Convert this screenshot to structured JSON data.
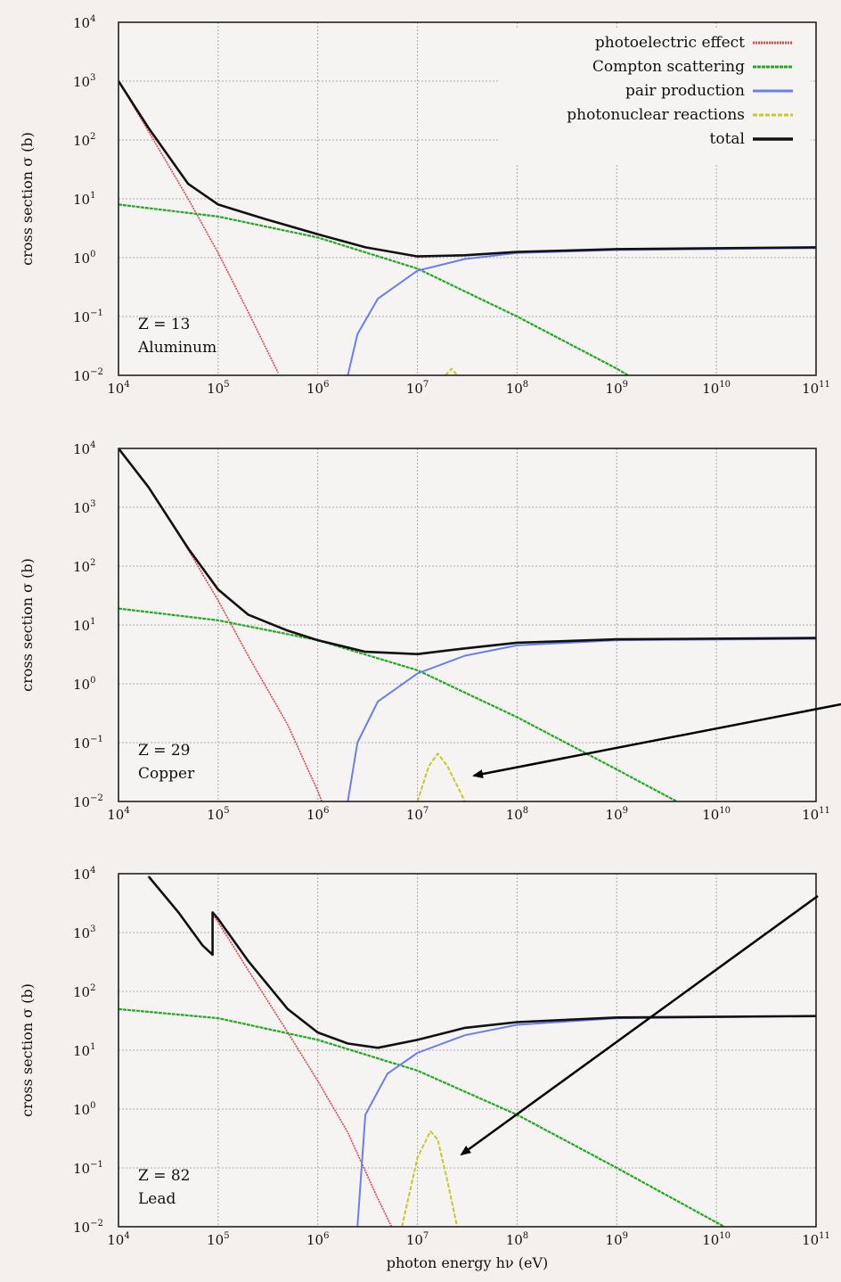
{
  "chart_data": [
    {
      "type": "line",
      "panel": "aluminum",
      "annotation_z": "Z = 13",
      "annotation_element": "Aluminum",
      "xlabel": "",
      "ylabel": "cross section σ (b)",
      "xscale": "log",
      "yscale": "log",
      "xlim": [
        10000,
        100000000000
      ],
      "ylim": [
        0.01,
        10000
      ],
      "x_ticks": [
        {
          "base": "10",
          "exp": "4"
        },
        {
          "base": "10",
          "exp": "5"
        },
        {
          "base": "10",
          "exp": "6"
        },
        {
          "base": "10",
          "exp": "7"
        },
        {
          "base": "10",
          "exp": "8"
        },
        {
          "base": "10",
          "exp": "9"
        },
        {
          "base": "10",
          "exp": "10"
        },
        {
          "base": "10",
          "exp": "11"
        }
      ],
      "y_ticks": [
        {
          "base": "10",
          "exp": "4"
        },
        {
          "base": "10",
          "exp": "3"
        },
        {
          "base": "10",
          "exp": "2"
        },
        {
          "base": "10",
          "exp": "1"
        },
        {
          "base": "10",
          "exp": "0"
        },
        {
          "base": "10",
          "exp": "−1"
        },
        {
          "base": "10",
          "exp": "−2"
        }
      ],
      "grid": true,
      "legend": "top-right",
      "series": [
        {
          "name": "photoelectric effect",
          "color": "#e04848",
          "points": [
            [
              10000,
              1000
            ],
            [
              20000,
              140
            ],
            [
              50000,
              10
            ],
            [
              100000,
              1.2
            ],
            [
              200000,
              0.12
            ],
            [
              400000,
              0.011
            ]
          ]
        },
        {
          "name": "Compton scattering",
          "color": "#22aa22",
          "points": [
            [
              10000,
              8
            ],
            [
              100000,
              5
            ],
            [
              1000000,
              2.2
            ],
            [
              10000000,
              0.65
            ],
            [
              100000000,
              0.1
            ],
            [
              1000000000,
              0.013
            ],
            [
              1300000000,
              0.01
            ]
          ]
        },
        {
          "name": "pair production",
          "color": "#6a7ef0",
          "points": [
            [
              2000000,
              0.01
            ],
            [
              2500000,
              0.05
            ],
            [
              4000000,
              0.2
            ],
            [
              10000000,
              0.6
            ],
            [
              30000000,
              0.95
            ],
            [
              100000000,
              1.2
            ],
            [
              1000000000,
              1.35
            ],
            [
              100000000000,
              1.45
            ]
          ]
        },
        {
          "name": "photonuclear reactions",
          "color": "#c8c828",
          "points": [
            [
              19000000,
              0.01
            ],
            [
              22000000,
              0.013
            ],
            [
              25000000,
              0.01
            ]
          ]
        },
        {
          "name": "total",
          "color": "#111111",
          "points": [
            [
              10000,
              1000
            ],
            [
              20000,
              160
            ],
            [
              50000,
              18
            ],
            [
              100000,
              8
            ],
            [
              300000,
              4.5
            ],
            [
              1000000,
              2.5
            ],
            [
              3000000,
              1.5
            ],
            [
              10000000,
              1.05
            ],
            [
              30000000,
              1.1
            ],
            [
              100000000,
              1.25
            ],
            [
              1000000000,
              1.4
            ],
            [
              100000000000,
              1.5
            ]
          ]
        }
      ]
    },
    {
      "type": "line",
      "panel": "copper",
      "annotation_z": "Z = 29",
      "annotation_element": "Copper",
      "xlabel": "",
      "ylabel": "cross section σ (b)",
      "xscale": "log",
      "yscale": "log",
      "xlim": [
        10000,
        100000000000
      ],
      "ylim": [
        0.01,
        10000
      ],
      "x_ticks": [
        {
          "base": "10",
          "exp": "4"
        },
        {
          "base": "10",
          "exp": "5"
        },
        {
          "base": "10",
          "exp": "6"
        },
        {
          "base": "10",
          "exp": "7"
        },
        {
          "base": "10",
          "exp": "8"
        },
        {
          "base": "10",
          "exp": "9"
        },
        {
          "base": "10",
          "exp": "10"
        },
        {
          "base": "10",
          "exp": "11"
        }
      ],
      "y_ticks": [
        {
          "base": "10",
          "exp": "4"
        },
        {
          "base": "10",
          "exp": "3"
        },
        {
          "base": "10",
          "exp": "2"
        },
        {
          "base": "10",
          "exp": "1"
        },
        {
          "base": "10",
          "exp": "0"
        },
        {
          "base": "10",
          "exp": "−1"
        },
        {
          "base": "10",
          "exp": "−2"
        }
      ],
      "grid": true,
      "series": [
        {
          "name": "photoelectric effect",
          "color": "#e04848",
          "points": [
            [
              10000,
              10000
            ],
            [
              20000,
              2200
            ],
            [
              50000,
              190
            ],
            [
              100000,
              26
            ],
            [
              200000,
              3
            ],
            [
              500000,
              0.2
            ],
            [
              1000000,
              0.015
            ],
            [
              1100000,
              0.01
            ]
          ]
        },
        {
          "name": "Compton scattering",
          "color": "#22aa22",
          "points": [
            [
              10000,
              19
            ],
            [
              100000,
              12
            ],
            [
              1000000,
              5.5
            ],
            [
              10000000,
              1.7
            ],
            [
              100000000,
              0.27
            ],
            [
              1000000000,
              0.035
            ],
            [
              4000000000,
              0.01
            ]
          ]
        },
        {
          "name": "pair production",
          "color": "#6a7ef0",
          "points": [
            [
              2000000,
              0.01
            ],
            [
              2500000,
              0.1
            ],
            [
              4000000,
              0.5
            ],
            [
              10000000,
              1.5
            ],
            [
              30000000,
              3
            ],
            [
              100000000,
              4.5
            ],
            [
              1000000000,
              5.5
            ],
            [
              100000000000,
              5.8
            ]
          ]
        },
        {
          "name": "photonuclear reactions",
          "color": "#c8c828",
          "points": [
            [
              10000000,
              0.01
            ],
            [
              13000000,
              0.04
            ],
            [
              16000000,
              0.065
            ],
            [
              20000000,
              0.04
            ],
            [
              30000000,
              0.01
            ]
          ]
        },
        {
          "name": "total",
          "color": "#111111",
          "points": [
            [
              10000,
              10000
            ],
            [
              20000,
              2200
            ],
            [
              50000,
              200
            ],
            [
              100000,
              40
            ],
            [
              200000,
              15
            ],
            [
              500000,
              8
            ],
            [
              1000000,
              5.5
            ],
            [
              3000000,
              3.5
            ],
            [
              10000000,
              3.2
            ],
            [
              30000000,
              4
            ],
            [
              100000000,
              5
            ],
            [
              1000000000,
              5.7
            ],
            [
              100000000000,
              6
            ]
          ]
        }
      ]
    },
    {
      "type": "line",
      "panel": "lead",
      "annotation_z": "Z = 82",
      "annotation_element": "Lead",
      "xlabel": "photon energy hν (eV)",
      "ylabel": "cross section σ (b)",
      "xscale": "log",
      "yscale": "log",
      "xlim": [
        10000,
        100000000000
      ],
      "ylim": [
        0.01,
        10000
      ],
      "x_ticks": [
        {
          "base": "10",
          "exp": "4"
        },
        {
          "base": "10",
          "exp": "5"
        },
        {
          "base": "10",
          "exp": "6"
        },
        {
          "base": "10",
          "exp": "7"
        },
        {
          "base": "10",
          "exp": "8"
        },
        {
          "base": "10",
          "exp": "9"
        },
        {
          "base": "10",
          "exp": "10"
        },
        {
          "base": "10",
          "exp": "11"
        }
      ],
      "y_ticks": [
        {
          "base": "10",
          "exp": "4"
        },
        {
          "base": "10",
          "exp": "3"
        },
        {
          "base": "10",
          "exp": "2"
        },
        {
          "base": "10",
          "exp": "1"
        },
        {
          "base": "10",
          "exp": "0"
        },
        {
          "base": "10",
          "exp": "−1"
        },
        {
          "base": "10",
          "exp": "−2"
        }
      ],
      "grid": true,
      "series": [
        {
          "name": "photoelectric effect",
          "color": "#e04848",
          "points": [
            [
              88000,
              2000
            ],
            [
              100000,
              1500
            ],
            [
              200000,
              230
            ],
            [
              500000,
              20
            ],
            [
              1000000,
              3
            ],
            [
              2000000,
              0.4
            ],
            [
              4000000,
              0.03
            ],
            [
              5500000,
              0.01
            ]
          ]
        },
        {
          "name": "Compton scattering",
          "color": "#22aa22",
          "points": [
            [
              10000,
              50
            ],
            [
              100000,
              35
            ],
            [
              1000000,
              15
            ],
            [
              10000000,
              4.5
            ],
            [
              100000000,
              0.8
            ],
            [
              1000000000,
              0.1
            ],
            [
              12000000000,
              0.01
            ]
          ]
        },
        {
          "name": "pair production",
          "color": "#6a7ef0",
          "points": [
            [
              2500000,
              0.01
            ],
            [
              3000000,
              0.8
            ],
            [
              5000000,
              4
            ],
            [
              10000000,
              9
            ],
            [
              30000000,
              18
            ],
            [
              100000000,
              27
            ],
            [
              1000000000,
              35
            ],
            [
              100000000000,
              38
            ]
          ]
        },
        {
          "name": "photonuclear reactions",
          "color": "#c8c828",
          "points": [
            [
              7000000,
              0.01
            ],
            [
              10000000,
              0.15
            ],
            [
              13500000,
              0.42
            ],
            [
              16000000,
              0.3
            ],
            [
              20000000,
              0.06
            ],
            [
              25000000,
              0.01
            ]
          ]
        },
        {
          "name": "total",
          "color": "#111111",
          "points": [
            [
              20000,
              9000
            ],
            [
              40000,
              2200
            ],
            [
              70000,
              600
            ],
            [
              88000,
              420
            ],
            [
              88000,
              2200
            ],
            [
              100000,
              1700
            ],
            [
              200000,
              330
            ],
            [
              500000,
              50
            ],
            [
              1000000,
              20
            ],
            [
              2000000,
              13
            ],
            [
              4000000,
              11
            ],
            [
              10000000,
              15
            ],
            [
              30000000,
              24
            ],
            [
              100000000,
              30
            ],
            [
              1000000000,
              36
            ],
            [
              100000000000,
              38
            ]
          ]
        }
      ]
    }
  ]
}
